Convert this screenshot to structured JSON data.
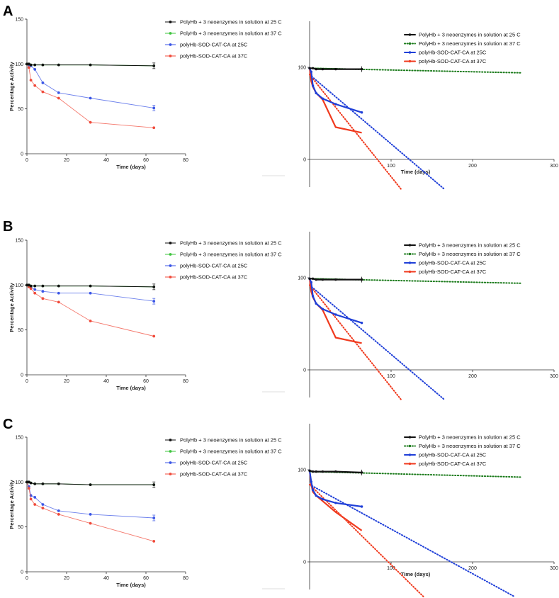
{
  "figure": {
    "panel_labels": [
      "A",
      "B",
      "C"
    ]
  },
  "legend_left": [
    {
      "label": "PolyHb + 3 neoenzymes in solution at 25 C",
      "color": "#111111"
    },
    {
      "label": "PolyHb + 3 neoenzymes in solution at 37 C",
      "color": "#3ec43e"
    },
    {
      "label": "polyHb-SOD-CAT-CA at 25C",
      "color": "#3b56e6"
    },
    {
      "label": "polyHb-SOD-CAT-CA at 37C",
      "color": "#f04a3a"
    }
  ],
  "legend_right": [
    {
      "label": "PolyHb + 3 neoenzymes in solution at 25 C",
      "color": "#111111"
    },
    {
      "label": "PolyHb + 3 neoenzymes in solution at 37 C",
      "color": "#1a7a1a"
    },
    {
      "label": "polyHb-SOD-CAT-CA at 25C",
      "color": "#1f3fd8"
    },
    {
      "label": "polyHb-SOD-CAT-CA at 37C",
      "color": "#f03a1e"
    }
  ],
  "chart_data": [
    {
      "panel": "A",
      "side": "left",
      "type": "line",
      "xlabel": "Time (days)",
      "ylabel": "Percentage Activity",
      "xlim": [
        0,
        80
      ],
      "ylim": [
        0,
        150
      ],
      "xticks": [
        "0",
        "20",
        "40",
        "60",
        "80"
      ],
      "yticks": [
        "0",
        "50",
        "100",
        "150"
      ],
      "series": [
        {
          "name": "PolyHb + 3 neoenzymes in solution at 25 C",
          "x": [
            0,
            1,
            2,
            4,
            8,
            16,
            32,
            64
          ],
          "y": [
            100,
            100,
            99,
            99,
            99,
            99,
            99,
            98
          ]
        },
        {
          "name": "PolyHb + 3 neoenzymes in solution at 37 C",
          "x": [
            0,
            1,
            2,
            4,
            8,
            16,
            32,
            64
          ],
          "y": [
            100,
            100,
            99,
            99,
            99,
            99,
            99,
            98
          ]
        },
        {
          "name": "polyHb-SOD-CAT-CA at 25C",
          "x": [
            0,
            1,
            2,
            4,
            8,
            16,
            32,
            64
          ],
          "y": [
            100,
            99,
            98,
            94,
            79,
            68,
            62,
            51
          ]
        },
        {
          "name": "polyHb-SOD-CAT-CA at 37C",
          "x": [
            0,
            1,
            2,
            4,
            8,
            16,
            32,
            64
          ],
          "y": [
            100,
            96,
            82,
            76,
            69,
            62,
            35,
            29
          ]
        }
      ]
    },
    {
      "panel": "A",
      "side": "right",
      "type": "line",
      "xlabel": "Time (days)",
      "xlim": [
        0,
        300
      ],
      "ylim": [
        -30,
        150
      ],
      "xticks": [
        "100",
        "200",
        "300"
      ],
      "yticks": [
        "0",
        "100"
      ],
      "series": [
        {
          "name": "PolyHb + 3 neoenzymes in solution at 25 C",
          "x": [
            0,
            4,
            8,
            16,
            32,
            64
          ],
          "y": [
            99,
            99,
            98,
            98,
            98,
            98
          ]
        },
        {
          "name": "PolyHb + 3 neoenzymes in solution at 37 C",
          "x": [
            0,
            64
          ],
          "y": [
            99,
            98
          ]
        },
        {
          "name": "polyHb-SOD-CAT-CA at 25C",
          "x": [
            0,
            2,
            4,
            8,
            16,
            32,
            64
          ],
          "y": [
            99,
            95,
            80,
            72,
            66,
            60,
            51
          ]
        },
        {
          "name": "polyHb-SOD-CAT-CA at 37C",
          "x": [
            0,
            2,
            4,
            8,
            16,
            32,
            64
          ],
          "y": [
            99,
            85,
            79,
            72,
            65,
            35,
            29
          ]
        }
      ],
      "trendlines": [
        {
          "name": "PolyHb + 3 neoenzymes in solution at 37 C",
          "x": [
            0,
            260
          ],
          "y": [
            99,
            94
          ]
        },
        {
          "name": "polyHb-SOD-CAT-CA at 25C",
          "x": [
            0,
            165
          ],
          "y": [
            92,
            -32
          ]
        },
        {
          "name": "polyHb-SOD-CAT-CA at 37C",
          "x": [
            0,
            112
          ],
          "y": [
            92,
            -32
          ]
        }
      ]
    },
    {
      "panel": "B",
      "side": "left",
      "type": "line",
      "xlabel": "Time (days)",
      "ylabel": "Percentage Activity",
      "xlim": [
        0,
        80
      ],
      "ylim": [
        0,
        150
      ],
      "xticks": [
        "0",
        "20",
        "40",
        "60",
        "80"
      ],
      "yticks": [
        "0",
        "50",
        "100",
        "150"
      ],
      "series": [
        {
          "name": "PolyHb + 3 neoenzymes in solution at 25 C",
          "x": [
            0,
            1,
            2,
            4,
            8,
            16,
            32,
            64
          ],
          "y": [
            100,
            100,
            99,
            99,
            99,
            99,
            99,
            98
          ]
        },
        {
          "name": "PolyHb + 3 neoenzymes in solution at 37 C",
          "x": [
            0,
            1,
            2,
            4,
            8,
            16,
            32,
            64
          ],
          "y": [
            100,
            100,
            99,
            99,
            99,
            99,
            99,
            98
          ]
        },
        {
          "name": "polyHb-SOD-CAT-CA at 25C",
          "x": [
            0,
            1,
            2,
            4,
            8,
            16,
            32,
            64
          ],
          "y": [
            100,
            99,
            98,
            95,
            93,
            91,
            91,
            82
          ]
        },
        {
          "name": "polyHb-SOD-CAT-CA at 37C",
          "x": [
            0,
            1,
            2,
            4,
            8,
            16,
            32,
            64
          ],
          "y": [
            100,
            98,
            96,
            91,
            85,
            81,
            60,
            43
          ]
        }
      ]
    },
    {
      "panel": "B",
      "side": "right",
      "type": "line",
      "xlabel": "",
      "xlim": [
        0,
        300
      ],
      "ylim": [
        -30,
        150
      ],
      "xticks": [
        "100",
        "200",
        "300"
      ],
      "yticks": [
        "0",
        "100"
      ],
      "series": [
        {
          "name": "PolyHb + 3 neoenzymes in solution at 25 C",
          "x": [
            0,
            4,
            8,
            16,
            32,
            64
          ],
          "y": [
            99,
            99,
            98,
            98,
            98,
            98
          ]
        },
        {
          "name": "PolyHb + 3 neoenzymes in solution at 37 C",
          "x": [
            0,
            64
          ],
          "y": [
            99,
            98
          ]
        },
        {
          "name": "polyHb-SOD-CAT-CA at 25C",
          "x": [
            0,
            2,
            4,
            8,
            16,
            32,
            64
          ],
          "y": [
            99,
            95,
            80,
            72,
            66,
            60,
            51
          ]
        },
        {
          "name": "polyHb-SOD-CAT-CA at 37C",
          "x": [
            0,
            2,
            4,
            8,
            16,
            32,
            64
          ],
          "y": [
            99,
            85,
            79,
            72,
            65,
            35,
            29
          ]
        }
      ],
      "trendlines": [
        {
          "name": "PolyHb + 3 neoenzymes in solution at 37 C",
          "x": [
            0,
            260
          ],
          "y": [
            99,
            94
          ]
        },
        {
          "name": "polyHb-SOD-CAT-CA at 25C",
          "x": [
            0,
            165
          ],
          "y": [
            92,
            -32
          ]
        },
        {
          "name": "polyHb-SOD-CAT-CA at 37C",
          "x": [
            0,
            112
          ],
          "y": [
            92,
            -32
          ]
        }
      ]
    },
    {
      "panel": "C",
      "side": "left",
      "type": "line",
      "xlabel": "Time (days)",
      "ylabel": "Percentage Activity",
      "xlim": [
        0,
        80
      ],
      "ylim": [
        0,
        150
      ],
      "xticks": [
        "0",
        "20",
        "40",
        "60",
        "80"
      ],
      "yticks": [
        "0",
        "50",
        "100",
        "150"
      ],
      "series": [
        {
          "name": "PolyHb + 3 neoenzymes in solution at 25 C",
          "x": [
            0,
            1,
            2,
            4,
            8,
            16,
            32,
            64
          ],
          "y": [
            100,
            100,
            99,
            98,
            98,
            98,
            97,
            97
          ]
        },
        {
          "name": "PolyHb + 3 neoenzymes in solution at 37 C",
          "x": [
            0,
            1,
            2,
            4,
            8,
            16,
            32,
            64
          ],
          "y": [
            100,
            100,
            99,
            98,
            98,
            98,
            97,
            97
          ]
        },
        {
          "name": "polyHb-SOD-CAT-CA at 25C",
          "x": [
            0,
            1,
            2,
            4,
            8,
            16,
            32,
            64
          ],
          "y": [
            100,
            95,
            85,
            83,
            75,
            68,
            64,
            60
          ]
        },
        {
          "name": "polyHb-SOD-CAT-CA at 37C",
          "x": [
            0,
            1,
            2,
            4,
            8,
            16,
            32,
            64
          ],
          "y": [
            100,
            93,
            81,
            75,
            71,
            64,
            54,
            34
          ]
        }
      ]
    },
    {
      "panel": "C",
      "side": "right",
      "type": "line",
      "xlabel": "Time (days)",
      "xlim": [
        0,
        300
      ],
      "ylim": [
        -30,
        150
      ],
      "xticks": [
        "100",
        "200",
        "300"
      ],
      "yticks": [
        "0",
        "100"
      ],
      "series": [
        {
          "name": "PolyHb + 3 neoenzymes in solution at 25 C",
          "x": [
            0,
            4,
            8,
            16,
            32,
            64
          ],
          "y": [
            99,
            98,
            98,
            98,
            98,
            97
          ]
        },
        {
          "name": "PolyHb + 3 neoenzymes in solution at 37 C",
          "x": [
            0,
            64
          ],
          "y": [
            98,
            97
          ]
        },
        {
          "name": "polyHb-SOD-CAT-CA at 25C",
          "x": [
            0,
            2,
            4,
            8,
            16,
            32,
            64
          ],
          "y": [
            99,
            87,
            78,
            72,
            68,
            64,
            60
          ]
        },
        {
          "name": "polyHb-SOD-CAT-CA at 37C",
          "x": [
            0,
            2,
            4,
            8,
            16,
            32,
            64
          ],
          "y": [
            99,
            84,
            76,
            72,
            66,
            54,
            34
          ]
        }
      ],
      "trendlines": [
        {
          "name": "PolyHb + 3 neoenzymes in solution at 37 C",
          "x": [
            0,
            260
          ],
          "y": [
            98,
            92
          ]
        },
        {
          "name": "polyHb-SOD-CAT-CA at 25C",
          "x": [
            0,
            252
          ],
          "y": [
            84,
            -38
          ]
        },
        {
          "name": "polyHb-SOD-CAT-CA at 37C",
          "x": [
            0,
            140
          ],
          "y": [
            84,
            -38
          ]
        }
      ]
    }
  ]
}
